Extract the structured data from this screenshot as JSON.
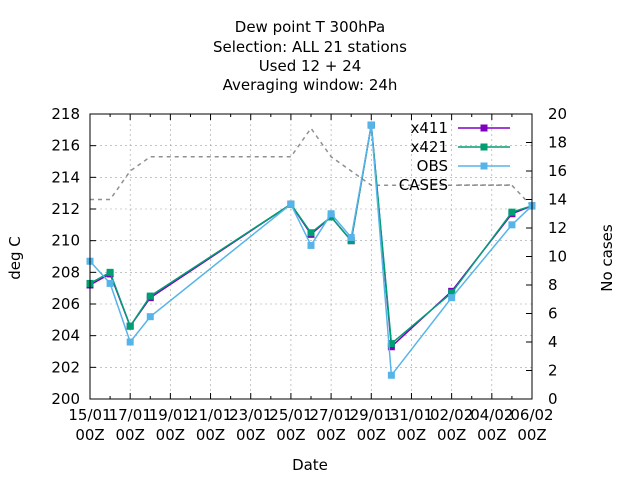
{
  "chart_data": {
    "type": "line",
    "title_lines": [
      "Dew point T 300hPa",
      "Selection: ALL      21 stations",
      "Used  12 + 24",
      "Averaging window: 24h"
    ],
    "xlabel": "Date",
    "ylabel": "deg C",
    "y2label": "No cases",
    "x_ticks": [
      {
        "line1": "15/01",
        "line2": "00Z"
      },
      {
        "line1": "17/01",
        "line2": "00Z"
      },
      {
        "line1": "19/01",
        "line2": "00Z"
      },
      {
        "line1": "21/01",
        "line2": "00Z"
      },
      {
        "line1": "23/01",
        "line2": "00Z"
      },
      {
        "line1": "25/01",
        "line2": "00Z"
      },
      {
        "line1": "27/01",
        "line2": "00Z"
      },
      {
        "line1": "29/01",
        "line2": "00Z"
      },
      {
        "line1": "31/01",
        "line2": "00Z"
      },
      {
        "line1": "02/02",
        "line2": "00Z"
      },
      {
        "line1": "04/02",
        "line2": "00Z"
      },
      {
        "line1": "06/02",
        "line2": "00Z"
      }
    ],
    "xlim": [
      "2024-01-15T00:00",
      "2024-02-06T00:00"
    ],
    "ylim": [
      200,
      218
    ],
    "y_ticks": [
      200,
      202,
      204,
      206,
      208,
      210,
      212,
      214,
      216,
      218
    ],
    "y2lim": [
      0,
      20
    ],
    "y2_ticks": [
      0,
      2,
      4,
      6,
      8,
      10,
      12,
      14,
      16,
      18,
      20
    ],
    "grid": true,
    "legend_position": "top-right",
    "series": [
      {
        "name": "x411",
        "color": "#8000c0",
        "axis": "y",
        "style": "line-points",
        "points": [
          {
            "x": "2024-01-15T00:00",
            "y": 207.2
          },
          {
            "x": "2024-01-16T00:00",
            "y": 207.9
          },
          {
            "x": "2024-01-17T00:00",
            "y": 204.6
          },
          {
            "x": "2024-01-18T00:00",
            "y": 206.4
          },
          {
            "x": "2024-01-25T00:00",
            "y": 212.3
          },
          {
            "x": "2024-01-26T00:00",
            "y": 210.4
          },
          {
            "x": "2024-01-27T00:00",
            "y": 211.5
          },
          {
            "x": "2024-01-28T00:00",
            "y": 210.0
          },
          {
            "x": "2024-01-29T00:00",
            "y": 217.3
          },
          {
            "x": "2024-01-30T00:00",
            "y": 203.3
          },
          {
            "x": "2024-02-02T00:00",
            "y": 206.8
          },
          {
            "x": "2024-02-05T00:00",
            "y": 211.7
          },
          {
            "x": "2024-02-06T00:00",
            "y": 212.2
          }
        ]
      },
      {
        "name": "x421",
        "color": "#009e73",
        "axis": "y",
        "style": "line-points",
        "points": [
          {
            "x": "2024-01-15T00:00",
            "y": 207.3
          },
          {
            "x": "2024-01-16T00:00",
            "y": 208.0
          },
          {
            "x": "2024-01-17T00:00",
            "y": 204.6
          },
          {
            "x": "2024-01-18T00:00",
            "y": 206.5
          },
          {
            "x": "2024-01-25T00:00",
            "y": 212.3
          },
          {
            "x": "2024-01-26T00:00",
            "y": 210.5
          },
          {
            "x": "2024-01-27T00:00",
            "y": 211.5
          },
          {
            "x": "2024-01-28T00:00",
            "y": 210.0
          },
          {
            "x": "2024-01-29T00:00",
            "y": 217.3
          },
          {
            "x": "2024-01-30T00:00",
            "y": 203.5
          },
          {
            "x": "2024-02-02T00:00",
            "y": 206.7
          },
          {
            "x": "2024-02-05T00:00",
            "y": 211.8
          },
          {
            "x": "2024-02-06T00:00",
            "y": 212.2
          }
        ]
      },
      {
        "name": "OBS",
        "color": "#56b4e9",
        "axis": "y",
        "style": "line-points",
        "points": [
          {
            "x": "2024-01-15T00:00",
            "y": 208.7
          },
          {
            "x": "2024-01-16T00:00",
            "y": 207.3
          },
          {
            "x": "2024-01-17T00:00",
            "y": 203.6
          },
          {
            "x": "2024-01-18T00:00",
            "y": 205.2
          },
          {
            "x": "2024-01-25T00:00",
            "y": 212.3
          },
          {
            "x": "2024-01-26T00:00",
            "y": 209.7
          },
          {
            "x": "2024-01-27T00:00",
            "y": 211.7
          },
          {
            "x": "2024-01-28T00:00",
            "y": 210.2
          },
          {
            "x": "2024-01-29T00:00",
            "y": 217.3
          },
          {
            "x": "2024-01-30T00:00",
            "y": 201.5
          },
          {
            "x": "2024-02-02T00:00",
            "y": 206.4
          },
          {
            "x": "2024-02-05T00:00",
            "y": 211.0
          },
          {
            "x": "2024-02-06T00:00",
            "y": 212.2
          }
        ]
      },
      {
        "name": "CASES",
        "color": "#909090",
        "axis": "y2",
        "style": "dashed",
        "points": [
          {
            "x": "2024-01-15T00:00",
            "y": 14
          },
          {
            "x": "2024-01-16T00:00",
            "y": 14
          },
          {
            "x": "2024-01-17T00:00",
            "y": 16
          },
          {
            "x": "2024-01-18T00:00",
            "y": 17
          },
          {
            "x": "2024-01-25T00:00",
            "y": 17
          },
          {
            "x": "2024-01-26T00:00",
            "y": 19
          },
          {
            "x": "2024-01-27T00:00",
            "y": 17
          },
          {
            "x": "2024-01-28T00:00",
            "y": 16
          },
          {
            "x": "2024-01-29T00:00",
            "y": 15
          },
          {
            "x": "2024-01-30T00:00",
            "y": 15
          },
          {
            "x": "2024-02-02T00:00",
            "y": 15
          },
          {
            "x": "2024-02-05T00:00",
            "y": 15
          },
          {
            "x": "2024-02-06T00:00",
            "y": 13.5
          }
        ]
      }
    ]
  }
}
